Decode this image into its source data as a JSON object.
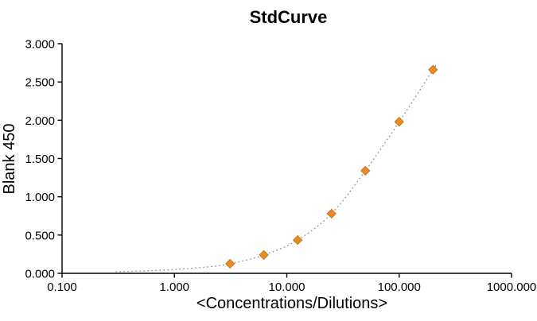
{
  "window": {
    "background_color": "#FFFFFF"
  },
  "chart_data": {
    "type": "scatter",
    "title": "StdCurve",
    "xlabel": "<Concentrations/Dilutions>",
    "ylabel": "Blank 450",
    "x_scale": "log",
    "y_scale": "linear",
    "xlim": [
      0.1,
      1000
    ],
    "ylim": [
      0,
      3
    ],
    "grid": false,
    "legend": "none",
    "x_ticks": [
      {
        "value": 0.1,
        "label": "0.100"
      },
      {
        "value": 1,
        "label": "1.000"
      },
      {
        "value": 10,
        "label": "10.000"
      },
      {
        "value": 100,
        "label": "100.000"
      },
      {
        "value": 1000,
        "label": "1000.000"
      }
    ],
    "y_ticks": [
      {
        "value": 0.0,
        "label": "0.000"
      },
      {
        "value": 0.5,
        "label": "0.500"
      },
      {
        "value": 1.0,
        "label": "1.000"
      },
      {
        "value": 1.5,
        "label": "1.500"
      },
      {
        "value": 2.0,
        "label": "2.000"
      },
      {
        "value": 2.5,
        "label": "2.500"
      },
      {
        "value": 3.0,
        "label": "3.000"
      }
    ],
    "series": [
      {
        "name": "fit-curve",
        "type": "line",
        "line_style": "dotted",
        "color": "#8A8A8A",
        "x": [
          0.3,
          0.5,
          1,
          2,
          3.125,
          6.25,
          12.5,
          25,
          50,
          100,
          200,
          212
        ],
        "y": [
          0.02,
          0.03,
          0.05,
          0.085,
          0.125,
          0.24,
          0.435,
          0.78,
          1.34,
          1.98,
          2.66,
          2.72
        ]
      },
      {
        "name": "standards",
        "type": "scatter",
        "marker": "diamond",
        "color": "#EC8A25",
        "marker_edge_color": "#C97A1E",
        "x": [
          3.125,
          6.25,
          12.5,
          25,
          50,
          100,
          200
        ],
        "y": [
          0.125,
          0.24,
          0.435,
          0.78,
          1.34,
          1.98,
          2.66
        ]
      }
    ],
    "colors": {
      "axis": "#000000",
      "text": "#000000",
      "marker": "#EC8A25",
      "curve": "#8A8A8A",
      "background": "#FFFFFF"
    }
  }
}
